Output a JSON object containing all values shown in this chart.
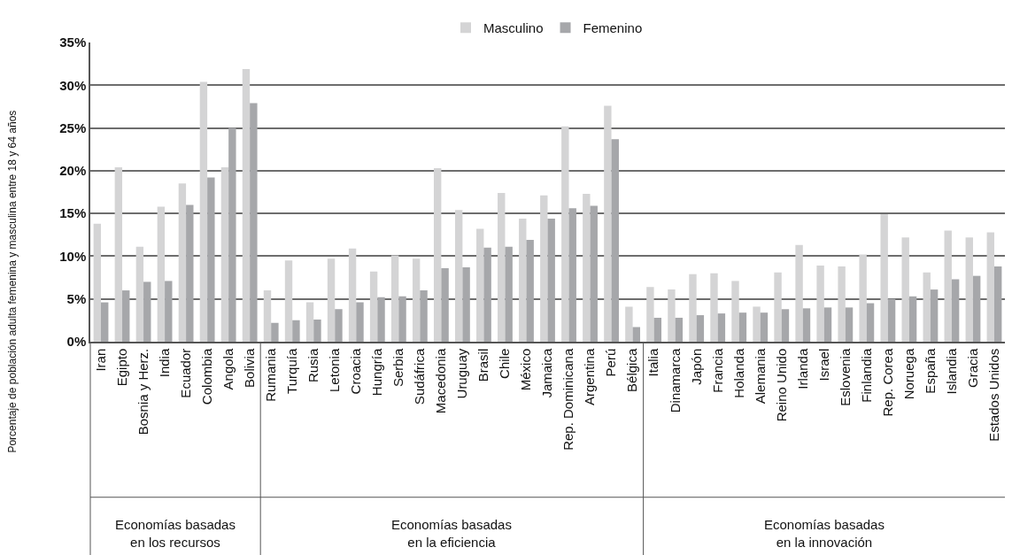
{
  "chart_data": [
    {
      "type": "bar",
      "xlabel": "Economías basadas\nen los recursos",
      "ylabel": "Porcentaje de población adulta femenina y masculina entre 18 y 64 años",
      "categories": [
        "Iran",
        "Egipto",
        "Bosnia y Herz.",
        "India",
        "Ecuador",
        "Colombia",
        "Angola",
        "Bolivia"
      ],
      "series": [
        {
          "name": "Masculino",
          "color": "#d4d4d5",
          "values": [
            13.8,
            20.4,
            11.1,
            15.8,
            18.5,
            30.4,
            20.4,
            31.9
          ]
        },
        {
          "name": "Femenino",
          "color": "#a6a7aa",
          "values": [
            4.6,
            6.0,
            7.0,
            7.1,
            16.0,
            19.2,
            25.0,
            27.9
          ]
        }
      ],
      "ylim": [
        0,
        35
      ],
      "yticks": [
        {
          "value": 0,
          "label": "0%"
        },
        {
          "value": 5,
          "label": "5%"
        },
        {
          "value": 10,
          "label": "10%"
        },
        {
          "value": 15,
          "label": "15%"
        },
        {
          "value": 20,
          "label": "20%"
        },
        {
          "value": 25,
          "label": "25%"
        },
        {
          "value": 30,
          "label": "30%"
        },
        {
          "value": 35,
          "label": "35%"
        }
      ],
      "grid": "y",
      "legend": "top"
    },
    {
      "type": "bar",
      "xlabel": "Economías basadas\nen la eficiencia",
      "categories": [
        "Rumania",
        "Turquía",
        "Rusia",
        "Letonia",
        "Croacia",
        "Hungría",
        "Serbia",
        "Sudáfrica",
        "Macedonia",
        "Uruguay",
        "Brasil",
        "Chile",
        "México",
        "Jamaica",
        "Rep. Dominicana",
        "Argentina",
        "Perú",
        "Bélgica"
      ],
      "series": [
        {
          "color": "#d4d4d5",
          "values": [
            6.0,
            9.5,
            4.6,
            9.7,
            10.9,
            8.2,
            10.1,
            9.7,
            20.3,
            15.4,
            13.2,
            17.4,
            14.4,
            17.1,
            25.2,
            17.3,
            27.6,
            4.1
          ]
        },
        {
          "color": "#a6a7aa",
          "values": [
            2.2,
            2.5,
            2.6,
            3.8,
            4.6,
            5.2,
            5.3,
            6.0,
            8.6,
            8.7,
            11.0,
            11.1,
            11.9,
            14.4,
            15.6,
            15.9,
            23.7,
            1.7
          ]
        }
      ],
      "ylim": [
        0,
        35
      ],
      "yticks": [
        0,
        5,
        10,
        15,
        20,
        25,
        30,
        35
      ],
      "grid": "y",
      "tick_labels": "x"
    },
    {
      "type": "bar",
      "xlabel": "Economías basadas\nen la innovación",
      "categories": [
        "Italia",
        "Dinamarca",
        "Japón",
        "Francia",
        "Holanda",
        "Alemania",
        "Reino Unido",
        "Irlanda",
        "Israel",
        "Eslovenia",
        "Finlandia",
        "Rep. Corea",
        "Noruega",
        "España",
        "Islandia",
        "Gracia",
        "Estados Unidos"
      ],
      "series": [
        {
          "color": "#d4d4d5",
          "values": [
            6.4,
            6.1,
            7.9,
            8.0,
            7.1,
            4.1,
            8.1,
            11.3,
            8.9,
            8.8,
            10.2,
            14.9,
            12.2,
            8.1,
            13.0,
            12.2,
            12.8
          ]
        },
        {
          "color": "#a6a7aa",
          "values": [
            2.8,
            2.8,
            3.1,
            3.3,
            3.4,
            3.4,
            3.8,
            3.9,
            4.0,
            4.0,
            4.5,
            5.0,
            5.3,
            6.1,
            7.3,
            7.7,
            8.8
          ]
        }
      ],
      "ylim": [
        0,
        35
      ],
      "yticks": [
        0,
        5,
        10,
        15,
        20,
        25,
        30,
        35
      ],
      "grid": "y",
      "tick_labels": "x"
    }
  ]
}
